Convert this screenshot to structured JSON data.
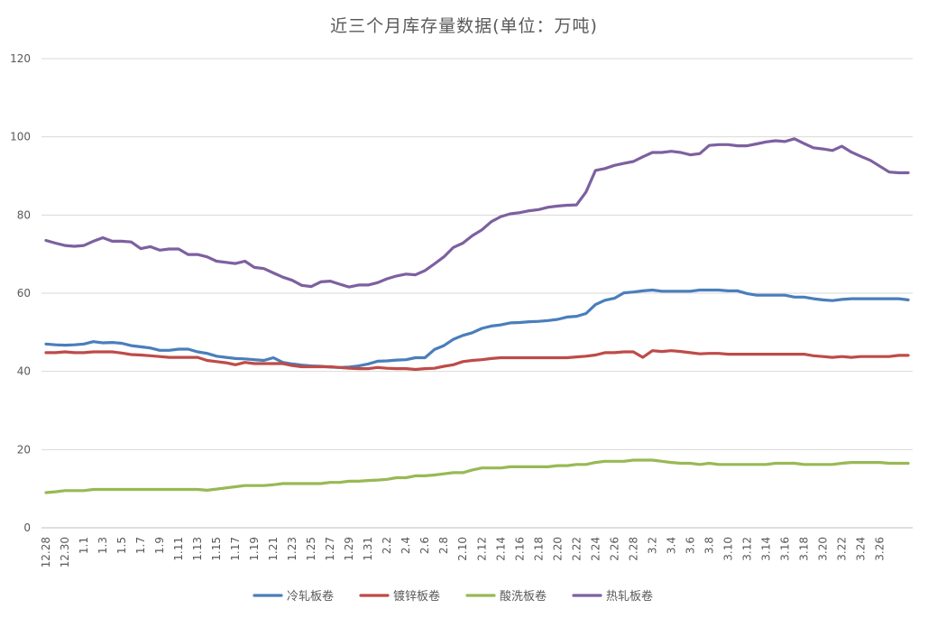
{
  "chart_data": {
    "type": "line",
    "title": "近三个月库存量数据(单位：万吨)",
    "ylim": [
      0,
      120
    ],
    "yticks": [
      0,
      20,
      40,
      60,
      80,
      100,
      120
    ],
    "grid": true,
    "legend_position": "bottom",
    "x": [
      "12.28",
      "12.29",
      "12.30",
      "12.31",
      "1.1",
      "1.2",
      "1.3",
      "1.4",
      "1.5",
      "1.6",
      "1.7",
      "1.8",
      "1.9",
      "1.10",
      "1.11",
      "1.12",
      "1.13",
      "1.14",
      "1.15",
      "1.16",
      "1.17",
      "1.18",
      "1.19",
      "1.20",
      "1.21",
      "1.22",
      "1.23",
      "1.24",
      "1.25",
      "1.26",
      "1.27",
      "1.28",
      "1.29",
      "1.30",
      "1.31",
      "2.1",
      "2.2",
      "2.3",
      "2.4",
      "2.5",
      "2.6",
      "2.7",
      "2.8",
      "2.9",
      "2.10",
      "2.11",
      "2.12",
      "2.13",
      "2.14",
      "2.15",
      "2.16",
      "2.17",
      "2.18",
      "2.19",
      "2.20",
      "2.21",
      "2.22",
      "2.23",
      "2.24",
      "2.25",
      "2.26",
      "2.27",
      "2.28",
      "3.1",
      "3.2",
      "3.3",
      "3.4",
      "3.5",
      "3.6",
      "3.7",
      "3.8",
      "3.9",
      "3.10",
      "3.11",
      "3.12",
      "3.13",
      "3.14",
      "3.15",
      "3.16",
      "3.17",
      "3.18",
      "3.19",
      "3.20",
      "3.21",
      "3.22",
      "3.23",
      "3.24",
      "3.25",
      "3.26",
      "3.27",
      "3.28",
      "3.29"
    ],
    "x_tick_labels": [
      "12.28",
      "12.30",
      "1.1",
      "1.3",
      "1.5",
      "1.7",
      "1.9",
      "1.11",
      "1.13",
      "1.15",
      "1.17",
      "1.19",
      "1.21",
      "1.23",
      "1.25",
      "1.27",
      "1.29",
      "1.31",
      "2.2",
      "2.4",
      "2.6",
      "2.8",
      "2.10",
      "2.12",
      "2.14",
      "2.16",
      "2.18",
      "2.20",
      "2.22",
      "2.24",
      "2.26",
      "2.28",
      "3.2",
      "3.4",
      "3.6",
      "3.8",
      "3.10",
      "3.12",
      "3.14",
      "3.16",
      "3.18",
      "3.20",
      "3.22",
      "3.24",
      "3.26"
    ],
    "series": [
      {
        "name": "冷轧板卷",
        "color": "#4A7EBB",
        "values": [
          47.0,
          46.8,
          46.7,
          46.8,
          47.0,
          47.6,
          47.3,
          47.4,
          47.2,
          46.6,
          46.3,
          46.0,
          45.4,
          45.4,
          45.7,
          45.7,
          45.0,
          44.6,
          43.9,
          43.6,
          43.3,
          43.2,
          43.0,
          42.8,
          43.5,
          42.3,
          41.9,
          41.6,
          41.4,
          41.3,
          41.1,
          41.0,
          41.1,
          41.4,
          41.9,
          42.6,
          42.7,
          42.9,
          43.0,
          43.5,
          43.5,
          45.6,
          46.6,
          48.2,
          49.2,
          49.9,
          51.0,
          51.6,
          51.9,
          52.4,
          52.5,
          52.7,
          52.8,
          53.0,
          53.3,
          53.9,
          54.1,
          54.8,
          57.1,
          58.2,
          58.7,
          60.1,
          60.3,
          60.6,
          60.8,
          60.5,
          60.5,
          60.5,
          60.5,
          60.8,
          60.8,
          60.8,
          60.6,
          60.6,
          59.9,
          59.5,
          59.5,
          59.5,
          59.5,
          59.0,
          59.0,
          58.6,
          58.3,
          58.1,
          58.4,
          58.6,
          58.6,
          58.6,
          58.6,
          58.6,
          58.6,
          58.3
        ]
      },
      {
        "name": "镀锌板卷",
        "color": "#BE4B48",
        "values": [
          44.8,
          44.8,
          45.0,
          44.8,
          44.8,
          45.0,
          45.0,
          45.0,
          44.7,
          44.3,
          44.2,
          44.0,
          43.8,
          43.6,
          43.6,
          43.6,
          43.6,
          42.8,
          42.5,
          42.2,
          41.7,
          42.3,
          42.0,
          42.0,
          42.0,
          42.0,
          41.5,
          41.2,
          41.2,
          41.2,
          41.2,
          41.0,
          40.8,
          40.7,
          40.7,
          41.0,
          40.8,
          40.7,
          40.7,
          40.5,
          40.7,
          40.8,
          41.3,
          41.7,
          42.5,
          42.8,
          43.0,
          43.3,
          43.5,
          43.5,
          43.5,
          43.5,
          43.5,
          43.5,
          43.5,
          43.5,
          43.7,
          43.9,
          44.2,
          44.8,
          44.8,
          45.0,
          45.0,
          43.6,
          45.3,
          45.1,
          45.3,
          45.1,
          44.8,
          44.5,
          44.6,
          44.6,
          44.4,
          44.4,
          44.4,
          44.4,
          44.4,
          44.4,
          44.4,
          44.4,
          44.4,
          44.0,
          43.8,
          43.6,
          43.8,
          43.6,
          43.8,
          43.8,
          43.8,
          43.8,
          44.1,
          44.1
        ]
      },
      {
        "name": "酸洗板卷",
        "color": "#98B954",
        "values": [
          9.0,
          9.2,
          9.5,
          9.5,
          9.5,
          9.8,
          9.8,
          9.8,
          9.8,
          9.8,
          9.8,
          9.8,
          9.8,
          9.8,
          9.8,
          9.8,
          9.8,
          9.6,
          9.9,
          10.2,
          10.5,
          10.8,
          10.8,
          10.8,
          11.0,
          11.3,
          11.3,
          11.3,
          11.3,
          11.3,
          11.6,
          11.6,
          11.9,
          11.9,
          12.1,
          12.2,
          12.4,
          12.8,
          12.8,
          13.3,
          13.3,
          13.5,
          13.8,
          14.1,
          14.1,
          14.8,
          15.3,
          15.3,
          15.3,
          15.6,
          15.6,
          15.6,
          15.6,
          15.6,
          15.9,
          15.9,
          16.2,
          16.2,
          16.7,
          17.0,
          17.0,
          17.0,
          17.3,
          17.3,
          17.3,
          17.0,
          16.7,
          16.5,
          16.5,
          16.2,
          16.5,
          16.2,
          16.2,
          16.2,
          16.2,
          16.2,
          16.2,
          16.5,
          16.5,
          16.5,
          16.2,
          16.2,
          16.2,
          16.2,
          16.5,
          16.7,
          16.7,
          16.7,
          16.7,
          16.5,
          16.5,
          16.5
        ]
      },
      {
        "name": "热轧板卷",
        "color": "#7D60A0",
        "values": [
          73.5,
          72.8,
          72.2,
          72.0,
          72.2,
          73.3,
          74.2,
          73.3,
          73.3,
          73.1,
          71.4,
          71.9,
          71.0,
          71.3,
          71.3,
          69.9,
          69.9,
          69.3,
          68.2,
          67.9,
          67.6,
          68.2,
          66.6,
          66.3,
          65.2,
          64.1,
          63.3,
          62.0,
          61.7,
          62.9,
          63.1,
          62.3,
          61.6,
          62.1,
          62.1,
          62.7,
          63.7,
          64.4,
          64.9,
          64.7,
          65.8,
          67.5,
          69.3,
          71.7,
          72.8,
          74.7,
          76.2,
          78.3,
          79.6,
          80.3,
          80.6,
          81.1,
          81.4,
          82.0,
          82.3,
          82.5,
          82.6,
          85.9,
          91.4,
          91.9,
          92.7,
          93.2,
          93.7,
          94.9,
          96.0,
          96.0,
          96.3,
          96.0,
          95.4,
          95.7,
          97.8,
          98.0,
          98.0,
          97.7,
          97.7,
          98.2,
          98.7,
          99.0,
          98.8,
          99.5,
          98.3,
          97.2,
          96.9,
          96.5,
          97.6,
          96.1,
          95.0,
          94.0,
          92.5,
          91.0,
          90.8,
          90.8
        ]
      }
    ]
  }
}
